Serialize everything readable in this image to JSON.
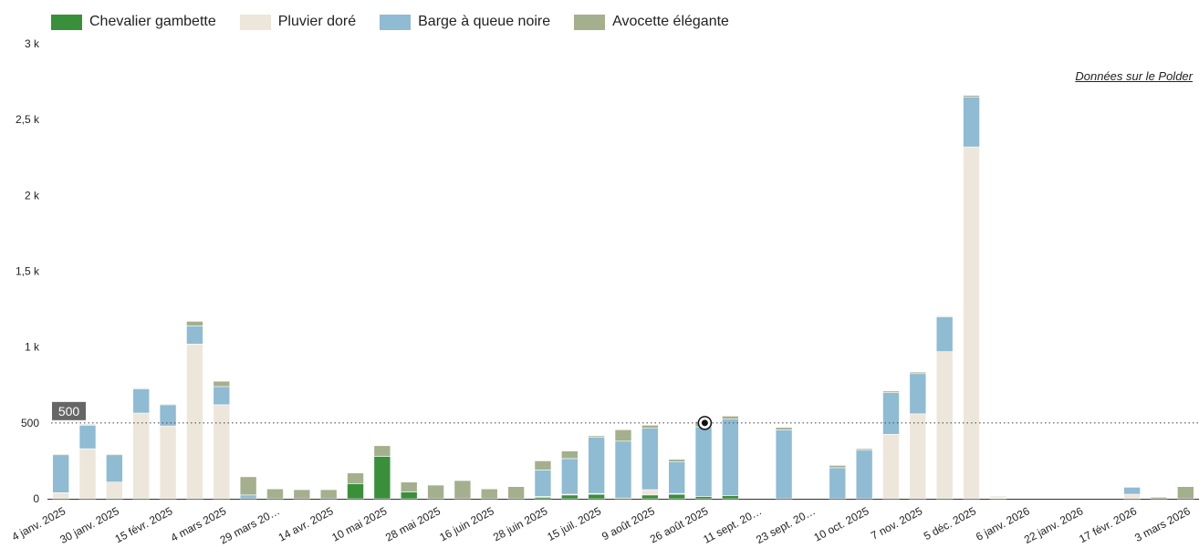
{
  "legend": {
    "items": [
      {
        "label": "Chevalier gambette",
        "color": "#3a8f3a"
      },
      {
        "label": "Pluvier doré",
        "color": "#ede6da"
      },
      {
        "label": "Barge à queue noire",
        "color": "#8fbbd3"
      },
      {
        "label": "Avocette élégante",
        "color": "#a4b08d"
      }
    ]
  },
  "source_link": "Données sur le Polder",
  "chart_data": {
    "type": "bar",
    "stacked": true,
    "ylim": [
      0,
      3000
    ],
    "yticks": [
      {
        "value": 0,
        "label": "0"
      },
      {
        "value": 500,
        "label": "500"
      },
      {
        "value": 1000,
        "label": "1 k"
      },
      {
        "value": 1500,
        "label": "1,5 k"
      },
      {
        "value": 2000,
        "label": "2 k"
      },
      {
        "value": 2500,
        "label": "2,5 k"
      },
      {
        "value": 3000,
        "label": "3 k"
      }
    ],
    "reference_line": {
      "value": 500,
      "label": "500"
    },
    "grid": false,
    "legend_position": "top-left",
    "xticks": [
      "4 janv. 2025",
      "30 janv. 2025",
      "15 févr. 2025",
      "4 mars 2025",
      "29 mars 20…",
      "14 avr. 2025",
      "10 mai 2025",
      "28 mai 2025",
      "16 juin 2025",
      "28 juin 2025",
      "15 juil. 2025",
      "9 août 2025",
      "26 août 2025",
      "11 sept. 20…",
      "23 sept. 20…",
      "10 oct. 2025",
      "7 nov. 2025",
      "5 déc. 2025",
      "6 janv. 2026",
      "22 janv. 2026",
      "17 févr. 2026",
      "3 mars 2026"
    ],
    "bars": [
      [
        0,
        40,
        250,
        5
      ],
      [
        0,
        330,
        155,
        5
      ],
      [
        0,
        110,
        180,
        5
      ],
      [
        0,
        565,
        160,
        5
      ],
      [
        0,
        480,
        140,
        5
      ],
      [
        0,
        1020,
        120,
        30
      ],
      [
        0,
        620,
        120,
        35
      ],
      [
        0,
        0,
        25,
        120
      ],
      [
        0,
        0,
        0,
        65
      ],
      [
        0,
        0,
        0,
        60
      ],
      [
        0,
        0,
        0,
        60
      ],
      [
        100,
        0,
        0,
        70
      ],
      [
        280,
        0,
        0,
        70
      ],
      [
        45,
        0,
        0,
        65
      ],
      [
        0,
        0,
        0,
        90
      ],
      [
        0,
        0,
        0,
        120
      ],
      [
        0,
        0,
        0,
        65
      ],
      [
        0,
        0,
        0,
        80
      ],
      [
        10,
        5,
        175,
        60
      ],
      [
        25,
        5,
        235,
        50
      ],
      [
        30,
        5,
        370,
        10
      ],
      [
        5,
        0,
        375,
        75
      ],
      [
        25,
        35,
        405,
        20
      ],
      [
        30,
        5,
        210,
        15
      ],
      [
        15,
        0,
        460,
        35
      ],
      [
        20,
        0,
        505,
        20
      ],
      [
        0,
        0,
        0,
        0
      ],
      [
        0,
        0,
        455,
        15
      ],
      [
        0,
        0,
        0,
        0
      ],
      [
        0,
        0,
        205,
        15
      ],
      [
        0,
        0,
        320,
        10
      ],
      [
        0,
        425,
        275,
        10
      ],
      [
        0,
        560,
        265,
        10
      ],
      [
        0,
        970,
        230,
        5
      ],
      [
        0,
        2320,
        330,
        10
      ],
      [
        0,
        5,
        5,
        5
      ],
      [
        0,
        0,
        0,
        0
      ],
      [
        0,
        0,
        0,
        0
      ],
      [
        0,
        0,
        0,
        0
      ],
      [
        0,
        0,
        0,
        0
      ],
      [
        0,
        30,
        45,
        5
      ],
      [
        0,
        0,
        0,
        10
      ],
      [
        0,
        0,
        0,
        80
      ]
    ]
  }
}
